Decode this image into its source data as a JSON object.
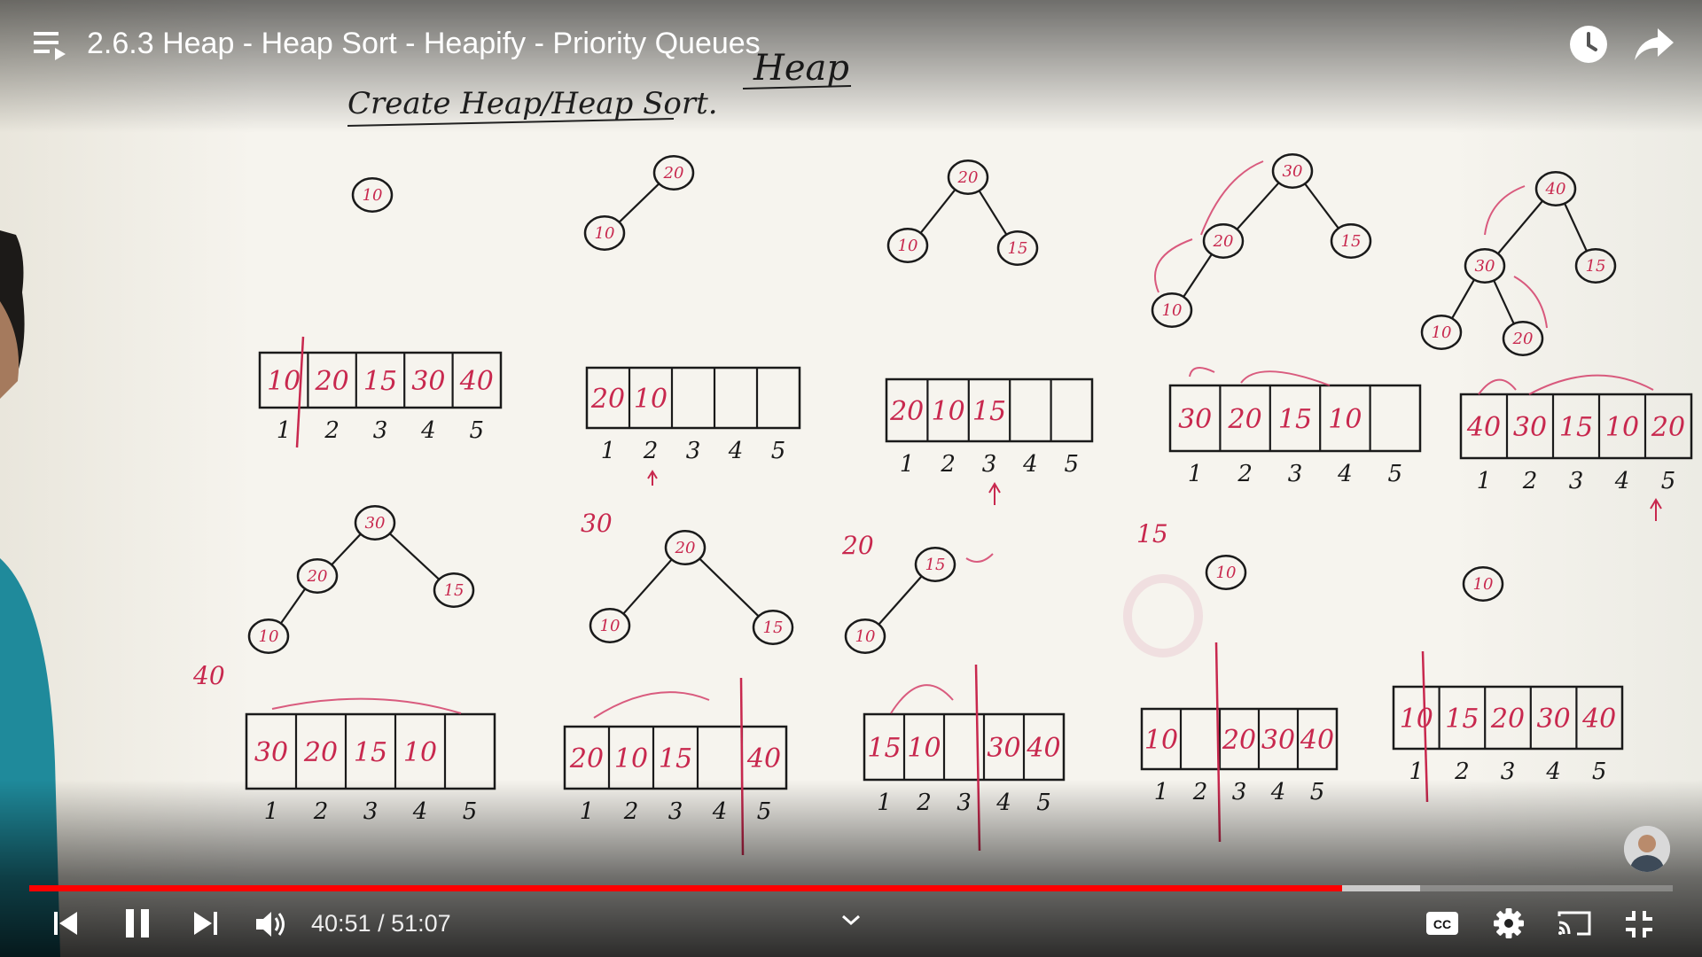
{
  "video": {
    "title": "2.6.3 Heap - Heap Sort - Heapify - Priority Queues",
    "current_time": "40:51",
    "separator": " / ",
    "duration": "51:07",
    "played_fraction": 0.7988,
    "buffered_fraction": 0.8463,
    "accent_color": "#ff0000"
  },
  "board": {
    "heading": "Heap",
    "subheading": "Create Heap/Heap Sort.",
    "create_heap": {
      "trees": [
        [
          "10"
        ],
        [
          "20",
          "10"
        ],
        [
          "20",
          "10",
          "15"
        ],
        [
          "30",
          "20",
          "15",
          "10"
        ],
        [
          "40",
          "30",
          "15",
          "10",
          "20"
        ]
      ],
      "arrays": [
        {
          "cells": [
            "10",
            "20",
            "15",
            "30",
            "40"
          ],
          "indices": [
            "1",
            "2",
            "3",
            "4",
            "5"
          ]
        },
        {
          "cells": [
            "20",
            "10",
            "",
            "",
            ""
          ],
          "indices": [
            "1",
            "2",
            "3",
            "4",
            "5"
          ]
        },
        {
          "cells": [
            "20",
            "10",
            "15",
            "",
            ""
          ],
          "indices": [
            "1",
            "2",
            "3",
            "4",
            "5"
          ]
        },
        {
          "cells": [
            "30",
            "20",
            "15",
            "10",
            ""
          ],
          "indices": [
            "1",
            "2",
            "3",
            "4",
            "5"
          ]
        },
        {
          "cells": [
            "40",
            "30",
            "15",
            "10",
            "20"
          ],
          "indices": [
            "1",
            "2",
            "3",
            "4",
            "5"
          ]
        }
      ]
    },
    "delete": {
      "removed": [
        "40",
        "30",
        "20",
        "15"
      ],
      "trees": [
        [
          "30",
          "20",
          "15",
          "10"
        ],
        [
          "20",
          "10",
          "15"
        ],
        [
          "15",
          "10"
        ],
        [
          "10"
        ],
        [
          "10"
        ]
      ],
      "arrays": [
        {
          "cells": [
            "30",
            "20",
            "15",
            "10",
            ""
          ],
          "indices": [
            "1",
            "2",
            "3",
            "4",
            "5"
          ]
        },
        {
          "cells": [
            "20",
            "10",
            "15",
            "",
            "40"
          ],
          "indices": [
            "1",
            "2",
            "3",
            "4",
            "5"
          ]
        },
        {
          "cells": [
            "15",
            "10",
            "",
            "30",
            "40"
          ],
          "indices": [
            "1",
            "2",
            "3",
            "4",
            "5"
          ]
        },
        {
          "cells": [
            "10",
            "",
            "20",
            "30",
            "40"
          ],
          "indices": [
            "1",
            "2",
            "3",
            "4",
            "5"
          ]
        },
        {
          "cells": [
            "10",
            "15",
            "20",
            "30",
            "40"
          ],
          "indices": [
            "1",
            "2",
            "3",
            "4",
            "5"
          ]
        }
      ]
    }
  },
  "icons": {
    "playlist": "playlist-icon",
    "watch_later": "clock-icon",
    "share": "share-arrow-icon",
    "previous": "skip-previous-icon",
    "pause": "pause-icon",
    "next": "skip-next-icon",
    "volume": "volume-icon",
    "chevron": "chevron-down-icon",
    "captions": "closed-captions-icon",
    "settings": "gear-icon",
    "cast": "cast-icon",
    "exit_fullscreen": "exit-fullscreen-icon"
  }
}
